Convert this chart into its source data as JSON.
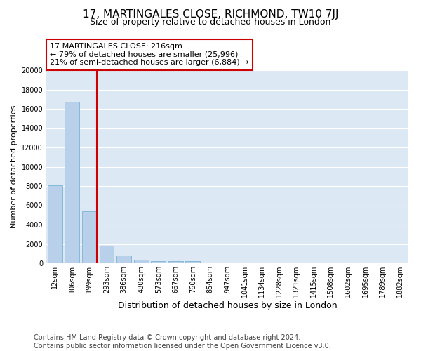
{
  "title": "17, MARTINGALES CLOSE, RICHMOND, TW10 7JJ",
  "subtitle": "Size of property relative to detached houses in London",
  "xlabel": "Distribution of detached houses by size in London",
  "ylabel": "Number of detached properties",
  "categories": [
    "12sqm",
    "106sqm",
    "199sqm",
    "293sqm",
    "386sqm",
    "480sqm",
    "573sqm",
    "667sqm",
    "760sqm",
    "854sqm",
    "947sqm",
    "1041sqm",
    "1134sqm",
    "1228sqm",
    "1321sqm",
    "1415sqm",
    "1508sqm",
    "1602sqm",
    "1695sqm",
    "1789sqm",
    "1882sqm"
  ],
  "values": [
    8100,
    16700,
    5400,
    1800,
    800,
    350,
    250,
    200,
    200,
    0,
    0,
    0,
    0,
    0,
    0,
    0,
    0,
    0,
    0,
    0,
    0
  ],
  "bar_color": "#b8d0ea",
  "bar_edge_color": "#6aabd2",
  "vline_x_index": 2,
  "vline_color": "#cc0000",
  "annotation_line1": "17 MARTINGALES CLOSE: 216sqm",
  "annotation_line2": "← 79% of detached houses are smaller (25,996)",
  "annotation_line3": "21% of semi-detached houses are larger (6,884) →",
  "annotation_box_color": "#ffffff",
  "annotation_box_edge": "#cc0000",
  "ylim": [
    0,
    20000
  ],
  "yticks": [
    0,
    2000,
    4000,
    6000,
    8000,
    10000,
    12000,
    14000,
    16000,
    18000,
    20000
  ],
  "background_color": "#dde8f5",
  "grid_color": "#ffffff",
  "footer": "Contains HM Land Registry data © Crown copyright and database right 2024.\nContains public sector information licensed under the Open Government Licence v3.0.",
  "title_fontsize": 11,
  "subtitle_fontsize": 9,
  "xlabel_fontsize": 9,
  "ylabel_fontsize": 8,
  "tick_fontsize": 7,
  "annotation_fontsize": 8,
  "footer_fontsize": 7
}
